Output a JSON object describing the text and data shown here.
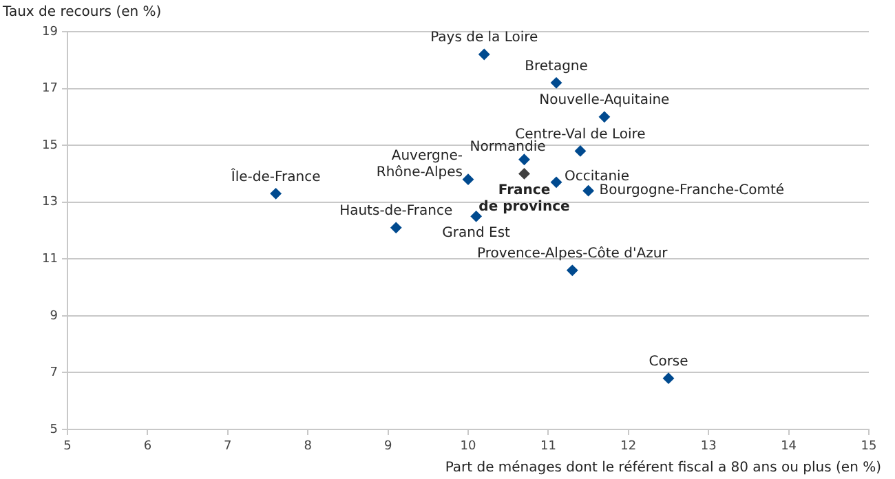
{
  "chart_data": {
    "type": "scatter",
    "ylabel": "Taux de recours (en %)",
    "xlabel": "Part de ménages dont le référent fiscal a 80 ans ou plus (en %)",
    "x": [
      10.2,
      11.1,
      11.7,
      11.4,
      10.7,
      10.7,
      10.0,
      11.1,
      11.5,
      7.6,
      9.1,
      10.1,
      11.3,
      12.5
    ],
    "values": [
      18.2,
      17.2,
      16.0,
      14.8,
      14.5,
      14.0,
      13.8,
      13.7,
      13.4,
      13.3,
      12.1,
      12.5,
      10.6,
      6.8
    ],
    "colors": [
      "#004a8f",
      "#004a8f",
      "#004a8f",
      "#004a8f",
      "#004a8f",
      "#404040",
      "#004a8f",
      "#004a8f",
      "#004a8f",
      "#004a8f",
      "#004a8f",
      "#004a8f",
      "#004a8f",
      "#004a8f"
    ],
    "annotations": [
      {
        "text": "Pays de la Loire",
        "x": 10.2,
        "y": 18.2
      },
      {
        "text": "Bretagne",
        "x": 11.1,
        "y": 17.2
      },
      {
        "text": "Nouvelle-Aquitaine",
        "x": 11.7,
        "y": 16.0
      },
      {
        "text": "Centre-Val de Loire",
        "x": 11.4,
        "y": 14.8
      },
      {
        "text": "Normandie",
        "x": 10.7,
        "y": 14.5
      },
      {
        "text": "France de province",
        "x": 10.7,
        "y": 14.0
      },
      {
        "text": "Auvergne-Rhône-Alpes",
        "x": 10.0,
        "y": 13.8
      },
      {
        "text": "Occitanie",
        "x": 11.1,
        "y": 13.7
      },
      {
        "text": "Bourgogne-Franche-Comté",
        "x": 11.5,
        "y": 13.4
      },
      {
        "text": "Île-de-France",
        "x": 7.6,
        "y": 13.3
      },
      {
        "text": "Hauts-de-France",
        "x": 9.1,
        "y": 12.1
      },
      {
        "text": "Grand Est",
        "x": 10.1,
        "y": 12.5
      },
      {
        "text": "Provence-Alpes-Côte d'Azur",
        "x": 11.3,
        "y": 10.6
      },
      {
        "text": "Corse",
        "x": 12.5,
        "y": 6.8
      }
    ],
    "xlim": [
      5,
      15
    ],
    "xticks": [
      5,
      6,
      7,
      8,
      9,
      10,
      11,
      12,
      13,
      14,
      15
    ],
    "ylim": [
      5,
      19
    ],
    "yticks": [
      5,
      7,
      9,
      11,
      13,
      15,
      17,
      19
    ],
    "grid": "y",
    "marker": "diamond"
  }
}
